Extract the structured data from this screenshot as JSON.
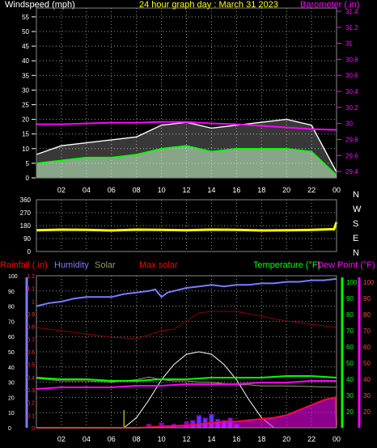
{
  "chart_data": [
    {
      "type": "line",
      "title": "24 hour graph day : March 31 2023",
      "left_axis_label": "Windspeed (mph)",
      "right_axis_label": "Barometer (.in)",
      "x_ticks": [
        "02",
        "04",
        "06",
        "08",
        "10",
        "12",
        "14",
        "16",
        "18",
        "20",
        "22",
        "00"
      ],
      "y_ticks": [
        "0",
        "5",
        "10",
        "15",
        "20",
        "25",
        "30",
        "35",
        "40",
        "45",
        "50",
        "55"
      ],
      "ylim": [
        0,
        58
      ],
      "y2_ticks": [
        "29.4",
        "29.6",
        "29.8",
        "30",
        "30.2",
        "30.4",
        "30.6",
        "30.8",
        "31",
        "31.2",
        "31.4"
      ],
      "y2lim": [
        29.32,
        31.44
      ],
      "grid": true,
      "colors": {
        "gust": "#ffffff",
        "wind": "#00ff00",
        "avg": "#ccffcc",
        "barometer": "#ff00ff",
        "axis_left": "#ffffff",
        "axis_right": "#ff00ff",
        "title": "#ffff00"
      },
      "series": [
        {
          "key": "barometer",
          "axis": "right",
          "x": [
            0,
            2,
            4,
            6,
            8,
            10,
            12,
            14,
            16,
            18,
            20,
            22,
            24
          ],
          "values": [
            29.99,
            29.99,
            30.0,
            30.01,
            30.01,
            30.02,
            30.02,
            30.0,
            29.99,
            29.97,
            29.95,
            29.93,
            29.92
          ]
        },
        {
          "key": "wind",
          "axis": "left",
          "x": [
            0,
            2,
            4,
            6,
            8,
            10,
            12,
            14,
            16,
            18,
            20,
            22,
            24
          ],
          "values": [
            5,
            6,
            7,
            7,
            8,
            10,
            11,
            9,
            10,
            10,
            10,
            9,
            1
          ]
        },
        {
          "key": "gust",
          "axis": "left",
          "x": [
            0,
            2,
            4,
            6,
            8,
            10,
            12,
            14,
            16,
            18,
            20,
            22,
            24
          ],
          "values": [
            8,
            11,
            12,
            13,
            14,
            18,
            19,
            17,
            18,
            19,
            20,
            18,
            2
          ]
        }
      ]
    },
    {
      "type": "line",
      "title": "",
      "right_labels": [
        "N",
        "W",
        "S",
        "E",
        "N"
      ],
      "x_ticks": [
        "02",
        "04",
        "06",
        "08",
        "10",
        "12",
        "14",
        "16",
        "18",
        "20",
        "22",
        "00"
      ],
      "y_ticks": [
        "0",
        "90",
        "180",
        "270",
        "360"
      ],
      "ylim": [
        0,
        360
      ],
      "grid": true,
      "colors": {
        "direction": "#ffff00",
        "axis": "#ffffff"
      },
      "series": [
        {
          "key": "direction",
          "x": [
            0,
            2,
            4,
            6,
            8,
            10,
            12,
            14,
            16,
            18,
            20,
            22,
            23.8,
            24
          ],
          "values": [
            148,
            152,
            150,
            146,
            152,
            150,
            148,
            152,
            150,
            146,
            148,
            150,
            155,
            205
          ]
        }
      ]
    },
    {
      "type": "area",
      "title": "",
      "legend": [
        {
          "label": "Rainfall (.in)",
          "color": "#ff0000"
        },
        {
          "label": "Humidity",
          "color": "#7b7bff"
        },
        {
          "label": "Solar",
          "color": "#999966"
        },
        {
          "label": "Max solar",
          "color": "#ff0000"
        },
        {
          "label": "Temperature (°F)",
          "color": "#00ff00"
        },
        {
          "label": "Dew Point (°F)",
          "color": "#ff00ff"
        }
      ],
      "x_ticks": [
        "02",
        "04",
        "06",
        "08",
        "10",
        "12",
        "14",
        "16",
        "18",
        "20",
        "22",
        "00"
      ],
      "humidity_ticks": [
        "0",
        "10",
        "20",
        "30",
        "40",
        "50",
        "60",
        "70",
        "80",
        "90",
        "100"
      ],
      "humidity_lim": [
        0,
        100
      ],
      "rain_ticks": [
        "0",
        "0.1",
        "0.2",
        "0.3",
        "0.4",
        "0.5",
        "0.6",
        "0.7",
        "0.8",
        "0.9",
        "1",
        "1.1",
        "1.2"
      ],
      "rain_lim": [
        0,
        1.2
      ],
      "temp_ticks": [
        "20",
        "30",
        "40",
        "50",
        "60",
        "70",
        "80",
        "90",
        "100"
      ],
      "temp_lim": [
        10,
        104
      ],
      "temp2_ticks": [
        "20",
        "30",
        "40",
        "50",
        "60",
        "70",
        "80",
        "90",
        "100"
      ],
      "temp2_lim": [
        10,
        104
      ],
      "grid": true,
      "series": [
        {
          "key": "humidity",
          "axis": "humidity",
          "color": "#7b7bff",
          "x": [
            0,
            1,
            2,
            3,
            4,
            5,
            6,
            7,
            8,
            9,
            9.5,
            10,
            10.5,
            11,
            12,
            13,
            14,
            15,
            16,
            17,
            18,
            19,
            20,
            21,
            22,
            23,
            24
          ],
          "values": [
            80,
            82,
            83,
            85,
            86,
            86,
            86,
            88,
            89,
            90,
            91,
            86,
            89,
            90,
            92,
            93,
            94,
            93,
            94,
            94,
            95,
            95,
            96,
            96,
            97,
            97,
            98
          ]
        },
        {
          "key": "temperature",
          "axis": "temp",
          "color": "#00ff00",
          "x": [
            0,
            2,
            4,
            6,
            8,
            10,
            12,
            14,
            16,
            18,
            20,
            22,
            24
          ],
          "values": [
            41,
            40,
            40,
            39,
            39,
            40,
            40,
            41,
            41,
            41,
            42,
            42,
            41
          ]
        },
        {
          "key": "dew_point",
          "axis": "temp",
          "color": "#ff00ff",
          "x": [
            0,
            2,
            4,
            6,
            8,
            10,
            12,
            14,
            16,
            18,
            20,
            22,
            24
          ],
          "values": [
            34,
            35,
            35,
            35,
            36,
            36,
            37,
            37,
            37,
            38,
            38,
            39,
            39
          ]
        },
        {
          "key": "max_temp_trace",
          "axis": "temp",
          "color": "#880000",
          "x": [
            0,
            2,
            4,
            6,
            8,
            10,
            11,
            12,
            13,
            14,
            16,
            18,
            20,
            22,
            24
          ],
          "values": [
            72,
            70,
            68,
            66,
            65,
            70,
            71,
            76,
            81,
            82,
            82,
            79,
            76,
            74,
            72
          ]
        },
        {
          "key": "max_solar",
          "axis": "rain",
          "color": "#ffffff",
          "x": [
            7,
            8,
            9,
            10,
            11,
            12,
            13,
            14,
            15,
            16,
            17,
            18,
            19
          ],
          "values": [
            0,
            0.08,
            0.22,
            0.38,
            0.5,
            0.58,
            0.6,
            0.58,
            0.5,
            0.38,
            0.22,
            0.08,
            0
          ]
        },
        {
          "key": "solar",
          "axis": "rain",
          "color": "#999966",
          "x": [
            0,
            2,
            4,
            6,
            7,
            8,
            9,
            10,
            11,
            12,
            13,
            14,
            15,
            16,
            17,
            18,
            19,
            20,
            24
          ],
          "values": [
            0.39,
            0.37,
            0.37,
            0.36,
            0.37,
            0.38,
            0.4,
            0.38,
            0.37,
            0.37,
            0.36,
            0.36,
            0.35,
            0.34,
            0.34,
            0.33,
            0.33,
            0.33,
            0.32
          ]
        },
        {
          "key": "rainfall",
          "axis": "rain",
          "color": "#ff0000",
          "x": [
            0,
            8,
            10,
            12,
            13,
            14,
            15,
            16,
            17,
            18,
            19,
            20,
            21,
            22,
            23,
            23.9,
            24
          ],
          "values": [
            0,
            0,
            0.01,
            0.02,
            0.03,
            0.04,
            0.05,
            0.05,
            0.06,
            0.07,
            0.08,
            0.1,
            0.14,
            0.18,
            0.22,
            0.24,
            0.02
          ]
        }
      ],
      "uv_bars": {
        "color": "#8800cc",
        "x": [
          9,
          10,
          11,
          12,
          12.5,
          13,
          13.5,
          14,
          14.5,
          15,
          15.5,
          16
        ],
        "values": [
          0.03,
          0.04,
          0.03,
          0.05,
          0.06,
          0.1,
          0.08,
          0.11,
          0.07,
          0.06,
          0.08,
          0.03
        ]
      },
      "accent": {
        "color": "#4444ff",
        "x": [
          12.5,
          13,
          13.5,
          14,
          14.5,
          15,
          15.5,
          16
        ],
        "values": [
          0.05,
          0.09,
          0.07,
          0.1,
          0.06,
          0.05,
          0.07,
          0.02
        ]
      }
    }
  ]
}
